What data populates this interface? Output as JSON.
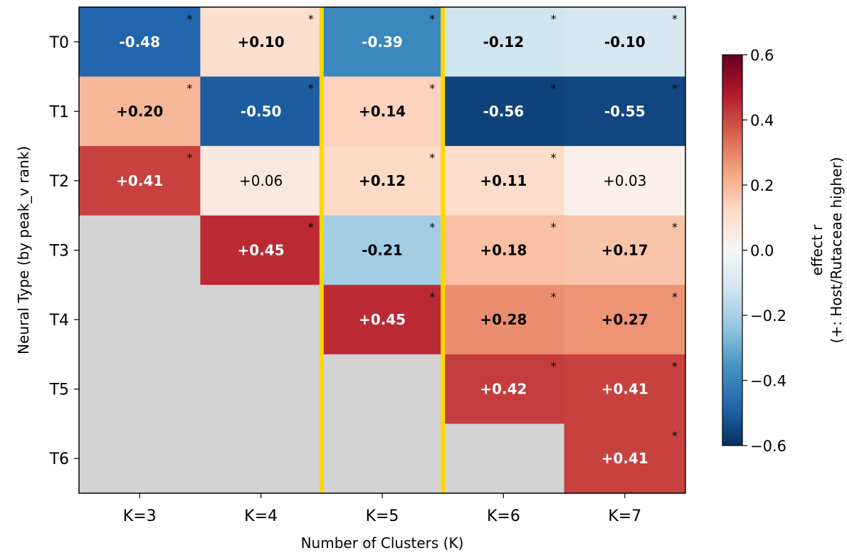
{
  "chart_data": {
    "type": "heatmap",
    "xlabel": "Number of Clusters (K)",
    "ylabel": "Neural Type (by peak_v rank)",
    "x_categories": [
      "K=3",
      "K=4",
      "K=5",
      "K=6",
      "K=7"
    ],
    "y_categories": [
      "T0",
      "T1",
      "T2",
      "T3",
      "T4",
      "T5",
      "T6"
    ],
    "values": [
      [
        -0.48,
        0.1,
        -0.39,
        -0.12,
        -0.1
      ],
      [
        0.2,
        -0.5,
        0.14,
        -0.56,
        -0.55
      ],
      [
        0.41,
        0.06,
        0.12,
        0.11,
        0.03
      ],
      [
        null,
        0.45,
        -0.21,
        0.18,
        0.17
      ],
      [
        null,
        null,
        0.45,
        0.28,
        0.27
      ],
      [
        null,
        null,
        null,
        0.42,
        0.41
      ],
      [
        null,
        null,
        null,
        null,
        0.41
      ]
    ],
    "cell_labels": [
      [
        "-0.48",
        "+0.10",
        "-0.39",
        "-0.12",
        "-0.10"
      ],
      [
        "+0.20",
        "-0.50",
        "+0.14",
        "-0.56",
        "-0.55"
      ],
      [
        "+0.41",
        "+0.06",
        "+0.12",
        "+0.11",
        "+0.03"
      ],
      [
        "",
        "+0.45",
        "-0.21",
        "+0.18",
        "+0.17"
      ],
      [
        "",
        "",
        "+0.45",
        "+0.28",
        "+0.27"
      ],
      [
        "",
        "",
        "",
        "+0.42",
        "+0.41"
      ],
      [
        "",
        "",
        "",
        "",
        "+0.41"
      ]
    ],
    "significant": [
      [
        true,
        true,
        true,
        true,
        true
      ],
      [
        true,
        true,
        true,
        true,
        true
      ],
      [
        true,
        false,
        true,
        true,
        false
      ],
      [
        false,
        true,
        true,
        true,
        true
      ],
      [
        false,
        false,
        true,
        true,
        true
      ],
      [
        false,
        false,
        false,
        true,
        true
      ],
      [
        false,
        false,
        false,
        false,
        true
      ]
    ],
    "significance_marker": "*",
    "highlighted_columns": [
      "K=5"
    ],
    "highlight_color": "#FFD700",
    "missing_color": "#d3d3d3",
    "colormap": "RdBu_r",
    "vmin": -0.6,
    "vmax": 0.6,
    "colorbar": {
      "label_line1": "effect r",
      "label_line2": "(+: Host/Rutaceae higher)",
      "ticks": [
        0.6,
        0.4,
        0.2,
        0.0,
        -0.2,
        -0.4,
        -0.6
      ],
      "tick_labels": [
        "0.6",
        "0.4",
        "0.2",
        "0.0",
        "−0.2",
        "−0.4",
        "−0.6"
      ]
    }
  }
}
